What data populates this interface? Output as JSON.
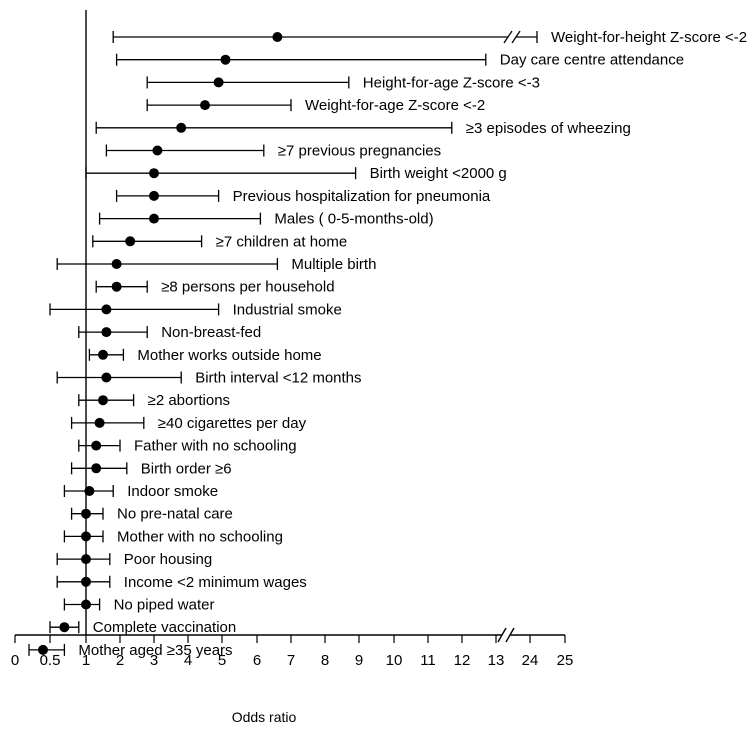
{
  "chart_data": {
    "type": "forest",
    "xlabel": "Odds ratio",
    "reference_line": 1,
    "x_tick_labels": [
      "0",
      "0.5",
      "1",
      "2",
      "3",
      "4",
      "5",
      "6",
      "7",
      "8",
      "9",
      "10",
      "11",
      "12",
      "13",
      "24",
      "25"
    ],
    "x_axis_break": {
      "from": 13,
      "to": 24
    },
    "rows": [
      {
        "label": "Weight-for-height Z-score <-2",
        "or": 6.6,
        "lower": 1.8,
        "upper": 24.2
      },
      {
        "label": "Day care centre attendance",
        "or": 5.1,
        "lower": 1.9,
        "upper": 12.7
      },
      {
        "label": "Height-for-age Z-score <-3",
        "or": 4.9,
        "lower": 2.8,
        "upper": 8.7
      },
      {
        "label": "Weight-for-age Z-score <-2",
        "or": 4.5,
        "lower": 2.8,
        "upper": 7.0
      },
      {
        "label": "≥3 episodes of wheezing",
        "or": 3.8,
        "lower": 1.3,
        "upper": 11.7
      },
      {
        "label": "≥7 previous pregnancies",
        "or": 3.1,
        "lower": 1.6,
        "upper": 6.2
      },
      {
        "label": "Birth weight <2000 g",
        "or": 3.0,
        "lower": 1.0,
        "upper": 8.9
      },
      {
        "label": "Previous hospitalization for pneumonia",
        "or": 3.0,
        "lower": 1.9,
        "upper": 4.9
      },
      {
        "label": "Males ( 0-5-months-old)",
        "or": 3.0,
        "lower": 1.4,
        "upper": 6.1
      },
      {
        "label": "≥7 children at home",
        "or": 2.3,
        "lower": 1.2,
        "upper": 4.4
      },
      {
        "label": "Multiple birth",
        "or": 1.9,
        "lower": 0.6,
        "upper": 6.6
      },
      {
        "label": "≥8 persons per household",
        "or": 1.9,
        "lower": 1.3,
        "upper": 2.8
      },
      {
        "label": "Industrial smoke",
        "or": 1.6,
        "lower": 0.5,
        "upper": 4.9
      },
      {
        "label": "Non-breast-fed",
        "or": 1.6,
        "lower": 0.9,
        "upper": 2.8
      },
      {
        "label": "Mother works outside home",
        "or": 1.5,
        "lower": 1.1,
        "upper": 2.1
      },
      {
        "label": "Birth interval <12 months",
        "or": 1.6,
        "lower": 0.6,
        "upper": 3.8
      },
      {
        "label": "≥2 abortions",
        "or": 1.5,
        "lower": 0.9,
        "upper": 2.4
      },
      {
        "label": "≥40 cigarettes per day",
        "or": 1.4,
        "lower": 0.8,
        "upper": 2.7
      },
      {
        "label": "Father with no schooling",
        "or": 1.3,
        "lower": 0.9,
        "upper": 2.0
      },
      {
        "label": "Birth order ≥6",
        "or": 1.3,
        "lower": 0.8,
        "upper": 2.2
      },
      {
        "label": "Indoor smoke",
        "or": 1.1,
        "lower": 0.7,
        "upper": 1.8
      },
      {
        "label": "No pre-natal care",
        "or": 1.0,
        "lower": 0.8,
        "upper": 1.5
      },
      {
        "label": "Mother with no schooling",
        "or": 1.0,
        "lower": 0.7,
        "upper": 1.5
      },
      {
        "label": "Poor housing",
        "or": 1.0,
        "lower": 0.6,
        "upper": 1.7
      },
      {
        "label": "Income <2 minimum wages",
        "or": 1.0,
        "lower": 0.6,
        "upper": 1.7
      },
      {
        "label": "No piped water",
        "or": 1.0,
        "lower": 0.7,
        "upper": 1.4
      },
      {
        "label": "Complete vaccination",
        "or": 0.7,
        "lower": 0.5,
        "upper": 0.9
      },
      {
        "label": "Mother aged ≥35 years",
        "or": 0.4,
        "lower": 0.2,
        "upper": 0.7
      }
    ]
  }
}
